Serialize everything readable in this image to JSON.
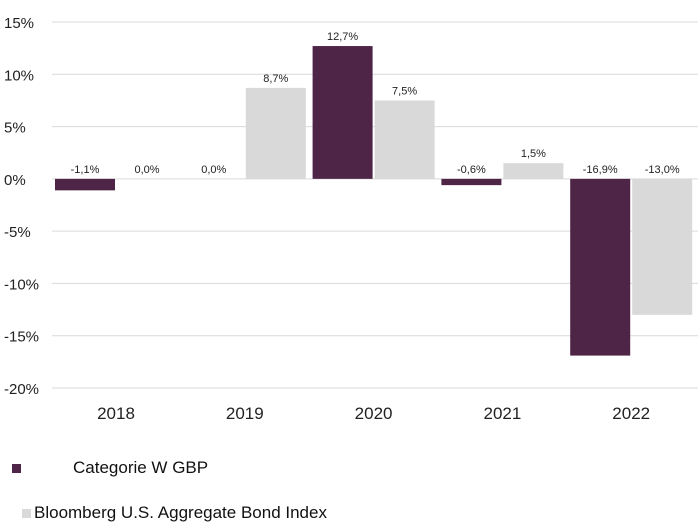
{
  "chart_data": {
    "type": "bar",
    "categories": [
      "2018",
      "2019",
      "2020",
      "2021",
      "2022"
    ],
    "series": [
      {
        "name": "Categorie W GBP",
        "color": "#4e2447",
        "values": [
          -1.1,
          0.0,
          12.7,
          -0.6,
          -16.9
        ],
        "labels": [
          "-1,1%",
          "0,0%",
          "12,7%",
          "-0,6%",
          "-16,9%"
        ]
      },
      {
        "name": "Bloomberg U.S. Aggregate Bond Index",
        "color": "#d9d9d9",
        "values": [
          0.0,
          8.7,
          7.5,
          1.5,
          -13.0
        ],
        "labels": [
          "0,0%",
          "8,7%",
          "7,5%",
          "1,5%",
          "-13,0%"
        ]
      }
    ],
    "ylim": [
      -20,
      15
    ],
    "yticks": [
      15,
      10,
      5,
      0,
      -5,
      -10,
      -15,
      -20
    ],
    "ytick_labels": [
      "15%",
      "10%",
      "5%",
      "0%",
      "-5%",
      "-10%",
      "-15%",
      "-20%"
    ],
    "grid": true,
    "legend_position": "bottom-left"
  }
}
